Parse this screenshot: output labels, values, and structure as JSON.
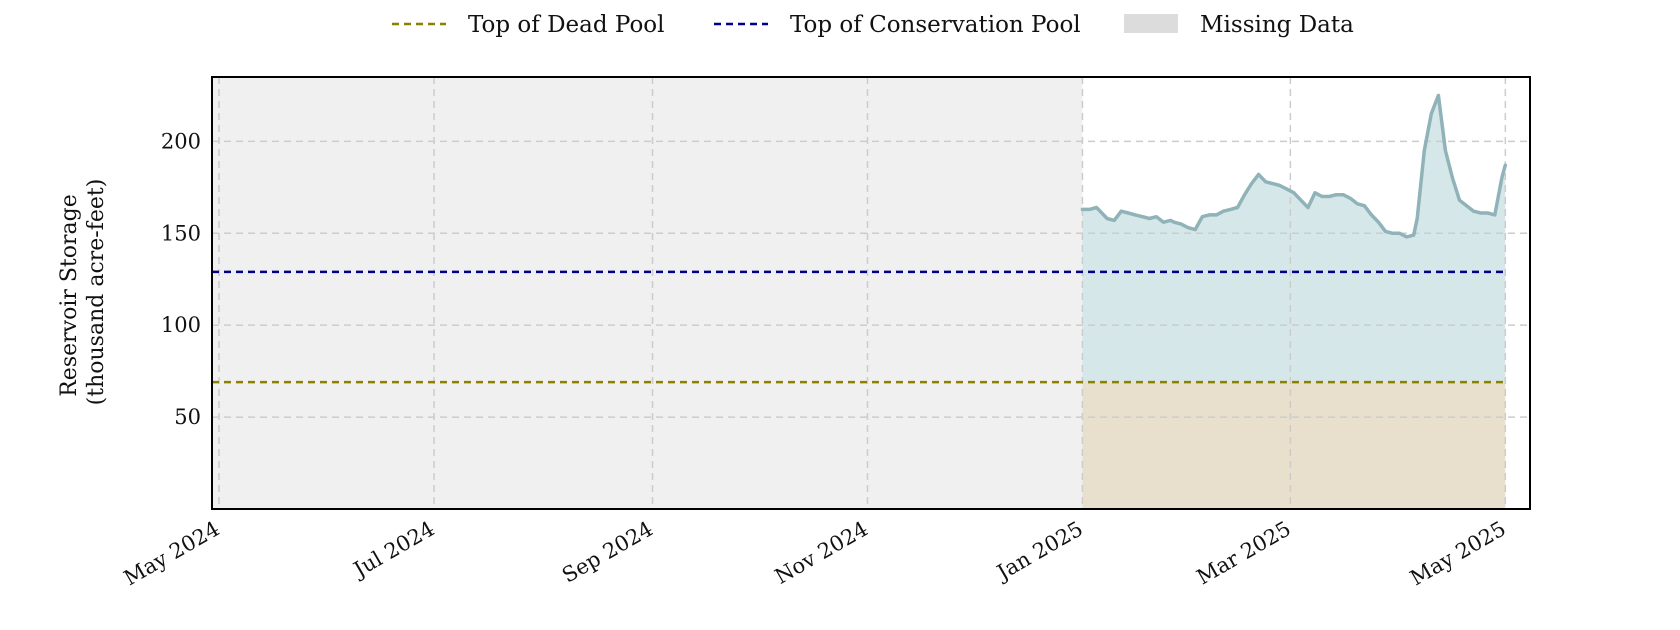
{
  "chart_data": {
    "type": "area",
    "xlabel": "",
    "ylabel_lines": [
      "Reservoir Storage",
      "(thousand acre-feet)"
    ],
    "x_range": [
      "2024-05-01",
      "2025-05-01"
    ],
    "ylim": [
      0,
      235
    ],
    "y_ticks": [
      50,
      100,
      150,
      200
    ],
    "x_ticks": [
      {
        "date": "2024-05-01",
        "label": "May 2024"
      },
      {
        "date": "2024-07-01",
        "label": "Jul 2024"
      },
      {
        "date": "2024-09-01",
        "label": "Sep 2024"
      },
      {
        "date": "2024-11-01",
        "label": "Nov 2024"
      },
      {
        "date": "2025-01-01",
        "label": "Jan 2025"
      },
      {
        "date": "2025-03-01",
        "label": "Mar 2025"
      },
      {
        "date": "2025-05-01",
        "label": "May 2025"
      }
    ],
    "grid": true,
    "legend_placement": "top-center",
    "legend": [
      {
        "kind": "dashed-line",
        "label": "Top of Dead Pool",
        "color": "#8b8000"
      },
      {
        "kind": "dashed-line",
        "label": "Top of Conservation Pool",
        "color": "#00008b"
      },
      {
        "kind": "patch",
        "label": "Missing Data",
        "color": "#dcdcdc"
      }
    ],
    "dead_pool": 69,
    "conservation_pool": 129,
    "missing_data_range": [
      "2024-05-01",
      "2025-01-01"
    ],
    "colors": {
      "storage_line": "#8fb3b8",
      "storage_fill": "#d5e7e9",
      "dead_pool_fill": "#e8e0cd",
      "missing_fill": "#f0f0f0",
      "grid": "#cccccc"
    },
    "series": [
      {
        "x": [
          "2025-01-01",
          "2025-01-03",
          "2025-01-05",
          "2025-01-06",
          "2025-01-08",
          "2025-01-10",
          "2025-01-12",
          "2025-01-14",
          "2025-01-16",
          "2025-01-18",
          "2025-01-20",
          "2025-01-22",
          "2025-01-24",
          "2025-01-26",
          "2025-01-27",
          "2025-01-29",
          "2025-01-31",
          "2025-02-02",
          "2025-02-04",
          "2025-02-06",
          "2025-02-08",
          "2025-02-10",
          "2025-02-12",
          "2025-02-14",
          "2025-02-16",
          "2025-02-18",
          "2025-02-20",
          "2025-02-22",
          "2025-02-24",
          "2025-02-26",
          "2025-02-28",
          "2025-03-02",
          "2025-03-04",
          "2025-03-06",
          "2025-03-08",
          "2025-03-10",
          "2025-03-12",
          "2025-03-14",
          "2025-03-16",
          "2025-03-18",
          "2025-03-20",
          "2025-03-22",
          "2025-03-24",
          "2025-03-26",
          "2025-03-28",
          "2025-03-30",
          "2025-04-01",
          "2025-04-03",
          "2025-04-05",
          "2025-04-06",
          "2025-04-08",
          "2025-04-10",
          "2025-04-12",
          "2025-04-14",
          "2025-04-16",
          "2025-04-18",
          "2025-04-20",
          "2025-04-22",
          "2025-04-24",
          "2025-04-26",
          "2025-04-28",
          "2025-04-30",
          "2025-05-01"
        ],
        "y": [
          163,
          163,
          164,
          162,
          158,
          157,
          162,
          161,
          160,
          159,
          158,
          159,
          156,
          157,
          156,
          155,
          153,
          152,
          159,
          160,
          160,
          162,
          163,
          164,
          171,
          177,
          182,
          178,
          177,
          176,
          174,
          172,
          168,
          164,
          172,
          170,
          170,
          171,
          171,
          169,
          166,
          165,
          160,
          156,
          151,
          150,
          150,
          148,
          149,
          158,
          195,
          215,
          225,
          195,
          180,
          168,
          165,
          162,
          161,
          161,
          160,
          180,
          187
        ]
      }
    ]
  }
}
